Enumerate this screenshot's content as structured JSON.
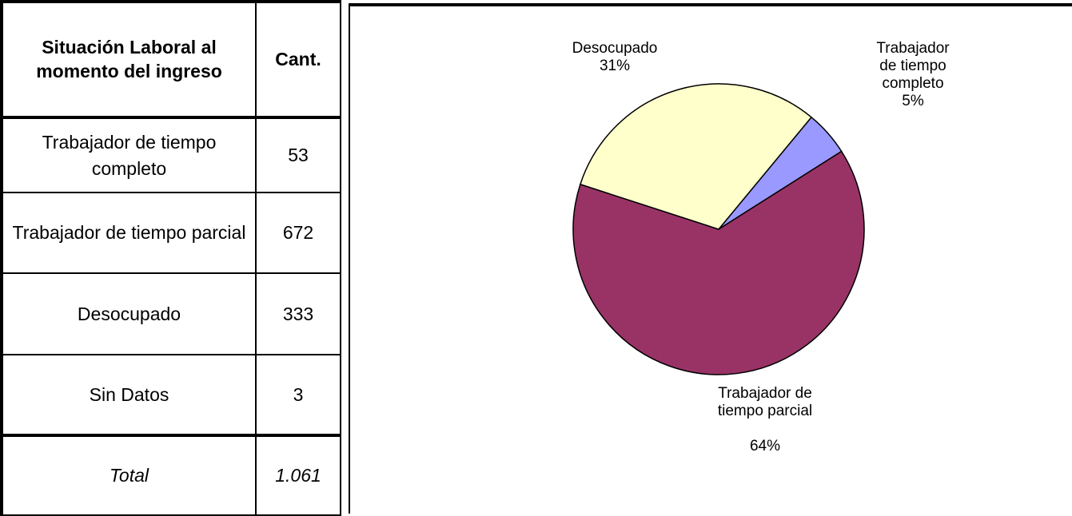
{
  "table": {
    "header": [
      "Situación Laboral al momento del ingreso",
      "Cant."
    ],
    "rows": [
      [
        "Trabajador de tiempo completo",
        "53"
      ],
      [
        "Trabajador de tiempo parcial",
        "672"
      ],
      [
        "Desocupado",
        "333"
      ],
      [
        "Sin Datos",
        "3"
      ]
    ],
    "total": [
      "Total",
      "1.061"
    ]
  },
  "chart_data": {
    "type": "pie",
    "categories": [
      "Trabajador de tiempo completo",
      "Trabajador de tiempo parcial",
      "Desocupado"
    ],
    "values": [
      5,
      64,
      31
    ],
    "value_labels": [
      "5%",
      "64%",
      "31%"
    ],
    "colors": [
      "#9999ff",
      "#993366",
      "#ffffcc"
    ]
  }
}
